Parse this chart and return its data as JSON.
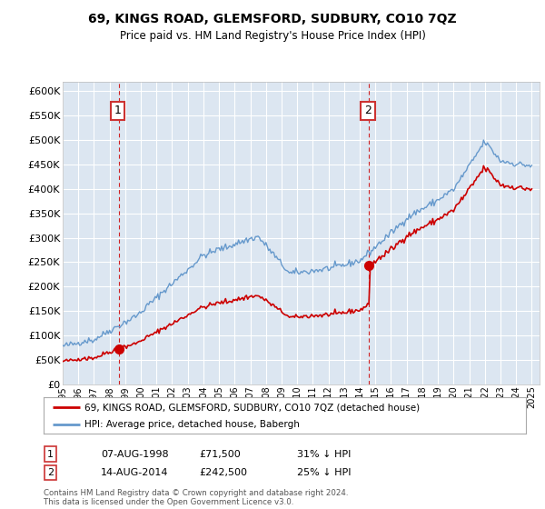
{
  "title": "69, KINGS ROAD, GLEMSFORD, SUDBURY, CO10 7QZ",
  "subtitle": "Price paid vs. HM Land Registry's House Price Index (HPI)",
  "legend_red": "69, KINGS ROAD, GLEMSFORD, SUDBURY, CO10 7QZ (detached house)",
  "legend_blue": "HPI: Average price, detached house, Babergh",
  "annotation1_date": "07-AUG-1998",
  "annotation1_price": "£71,500",
  "annotation1_hpi": "31% ↓ HPI",
  "annotation1_year": 1998.6,
  "annotation1_value": 71500,
  "annotation2_date": "14-AUG-2014",
  "annotation2_price": "£242,500",
  "annotation2_hpi": "25% ↓ HPI",
  "annotation2_year": 2014.6,
  "annotation2_value": 242500,
  "footer": "Contains HM Land Registry data © Crown copyright and database right 2024.\nThis data is licensed under the Open Government Licence v3.0.",
  "ylim": [
    0,
    620000
  ],
  "yticks": [
    0,
    50000,
    100000,
    150000,
    200000,
    250000,
    300000,
    350000,
    400000,
    450000,
    500000,
    550000,
    600000
  ],
  "ytick_labels": [
    "£0",
    "£50K",
    "£100K",
    "£150K",
    "£200K",
    "£250K",
    "£300K",
    "£350K",
    "£400K",
    "£450K",
    "£500K",
    "£550K",
    "£600K"
  ],
  "red_color": "#cc0000",
  "blue_color": "#6699cc",
  "plot_bg_color": "#dce6f1",
  "grid_color": "#ffffff",
  "annotation_box_color": "#cc3333",
  "xmin": 1995,
  "xmax": 2025.5
}
